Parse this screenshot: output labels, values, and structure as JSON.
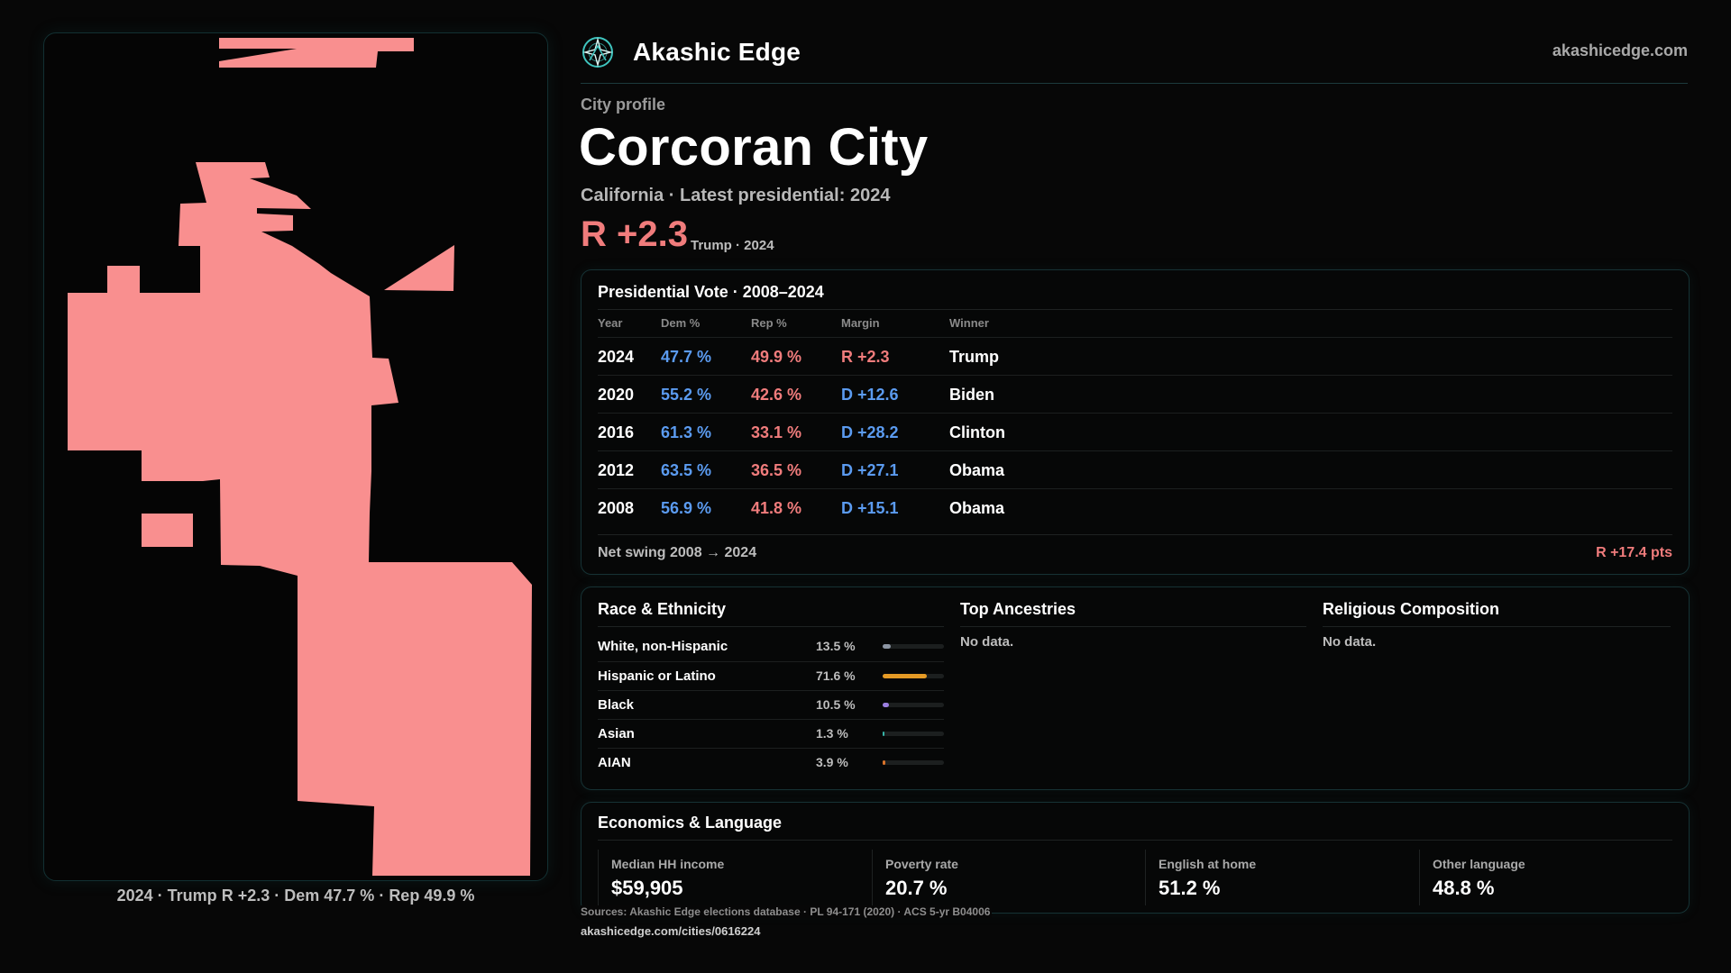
{
  "brand": {
    "name": "Akashic Edge",
    "domain": "akashicedge.com",
    "logo_icon": "compass-star-logo"
  },
  "profile": {
    "eyebrow": "City profile",
    "city": "Corcoran City",
    "subtitle": "California · Latest presidential: 2024",
    "margin": "R +2.3",
    "margin_note": "Trump · 2024"
  },
  "map": {
    "fill_color": "#f98f8f",
    "caption": {
      "year": "2024",
      "winner": "Trump",
      "margin": "R +2.3",
      "dem": "Dem 47.7 %",
      "rep": "Rep 49.9 %"
    }
  },
  "vote": {
    "title": "Presidential Vote · 2008–2024",
    "headers": {
      "year": "Year",
      "dem": "Dem %",
      "rep": "Rep %",
      "margin": "Margin",
      "winner": "Winner"
    },
    "rows": [
      {
        "year": "2024",
        "dem": "47.7 %",
        "rep": "49.9 %",
        "margin": "R +2.3",
        "party": "R",
        "winner": "Trump"
      },
      {
        "year": "2020",
        "dem": "55.2 %",
        "rep": "42.6 %",
        "margin": "D +12.6",
        "party": "D",
        "winner": "Biden"
      },
      {
        "year": "2016",
        "dem": "61.3 %",
        "rep": "33.1 %",
        "margin": "D +28.2",
        "party": "D",
        "winner": "Clinton"
      },
      {
        "year": "2012",
        "dem": "63.5 %",
        "rep": "36.5 %",
        "margin": "D +27.1",
        "party": "D",
        "winner": "Obama"
      },
      {
        "year": "2008",
        "dem": "56.9 %",
        "rep": "41.8 %",
        "margin": "D +15.1",
        "party": "D",
        "winner": "Obama"
      }
    ],
    "swing_label": "Net swing 2008 → 2024",
    "swing_value": "R +17.4 pts",
    "colors": {
      "dem": "#5b9bf0",
      "rep": "#f07c7c"
    }
  },
  "demographics": {
    "race_title": "Race & Ethnicity",
    "race": [
      {
        "label": "White, non-Hispanic",
        "pct": "13.5 %",
        "fraction": 0.135,
        "color": "#8c95a3"
      },
      {
        "label": "Hispanic or Latino",
        "pct": "71.6 %",
        "fraction": 0.716,
        "color": "#e59a25"
      },
      {
        "label": "Black",
        "pct": "10.5 %",
        "fraction": 0.105,
        "color": "#9b7fe0"
      },
      {
        "label": "Asian",
        "pct": "1.3 %",
        "fraction": 0.013,
        "color": "#36b3a7"
      },
      {
        "label": "AIAN",
        "pct": "3.9 %",
        "fraction": 0.039,
        "color": "#d9732a"
      }
    ],
    "ancestries_title": "Top Ancestries",
    "ancestries_empty": "No data.",
    "religion_title": "Religious Composition",
    "religion_empty": "No data."
  },
  "economics": {
    "title": "Economics & Language",
    "items": [
      {
        "label": "Median HH income",
        "value": "$59,905"
      },
      {
        "label": "Poverty rate",
        "value": "20.7 %"
      },
      {
        "label": "English at home",
        "value": "51.2 %"
      },
      {
        "label": "Other language",
        "value": "48.8 %"
      }
    ]
  },
  "footer": {
    "sources": "Sources: Akashic Edge elections database · PL 94-171 (2020) · ACS 5-yr B04006",
    "url": "akashicedge.com/cities/0616224"
  }
}
